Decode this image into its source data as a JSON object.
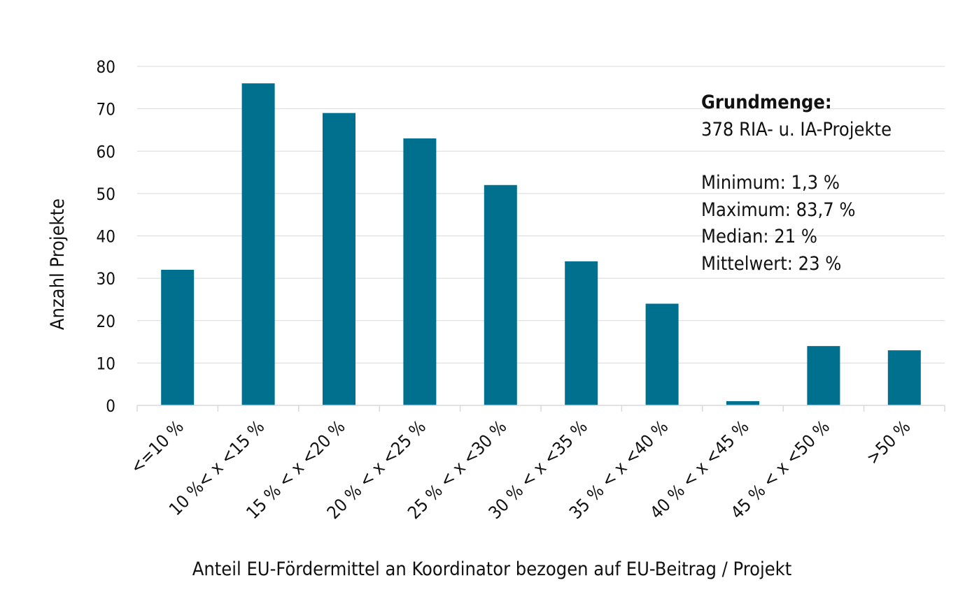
{
  "chart_data": {
    "type": "bar",
    "categories": [
      "<=10 %",
      "10 %< x <15 %",
      "15 % < x <20 %",
      "20 % < x <25 %",
      "25 % < x <30 %",
      "30 % < x <35 %",
      "35 % < x <40 %",
      "40 % < x <45 %",
      "45 % < x <50 %",
      ">50 %"
    ],
    "values": [
      32,
      76,
      69,
      63,
      52,
      34,
      24,
      1,
      14,
      13
    ],
    "title": "",
    "xlabel": "Anteil EU-Fördermittel an Koordinator bezogen auf EU-Beitrag / Projekt",
    "ylabel": "Anzahl Projekte",
    "ylim": [
      0,
      80
    ],
    "yticks": [
      0,
      10,
      20,
      30,
      40,
      50,
      60,
      70,
      80
    ],
    "grid": true,
    "bar_color": "#00708f",
    "annotation": {
      "heading": "Grundmenge:",
      "subheading": "378 RIA- u. IA-Projekte",
      "stats": [
        "Minimum: 1,3 %",
        "Maximum: 83,7 %",
        "Median: 21 %",
        "Mittelwert: 23 %"
      ]
    }
  }
}
